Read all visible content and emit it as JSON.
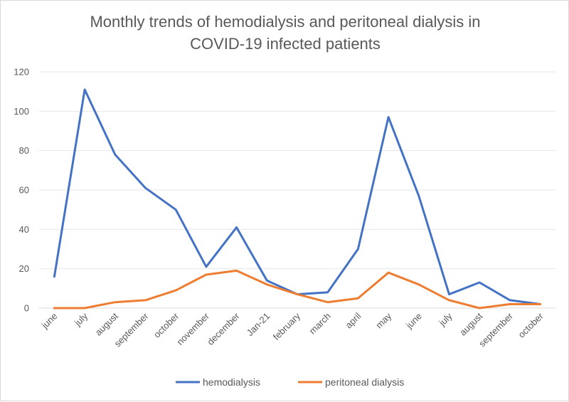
{
  "chart_data": {
    "type": "line",
    "title_line1": "Monthly trends of hemodialysis and peritoneal dialysis in",
    "title_line2": "COVID-19 infected patients",
    "categories": [
      "june",
      "july",
      "august",
      "september",
      "october",
      "november",
      "december",
      "Jan-21",
      "february",
      "march",
      "april",
      "may",
      "june",
      "july",
      "august",
      "september",
      "october"
    ],
    "series": [
      {
        "name": "hemodialysis",
        "color": "#4472c4",
        "values": [
          16,
          111,
          78,
          61,
          50,
          21,
          41,
          14,
          7,
          8,
          30,
          97,
          57,
          7,
          13,
          4,
          2
        ]
      },
      {
        "name": "peritoneal dialysis",
        "color": "#ed7d31",
        "values": [
          0,
          0,
          3,
          4,
          9,
          17,
          19,
          12,
          7,
          3,
          5,
          18,
          12,
          4,
          0,
          2,
          2
        ]
      }
    ],
    "ylim": [
      0,
      120
    ],
    "yticks": [
      0,
      20,
      40,
      60,
      80,
      100,
      120
    ],
    "grid": true,
    "legend_position": "bottom"
  }
}
